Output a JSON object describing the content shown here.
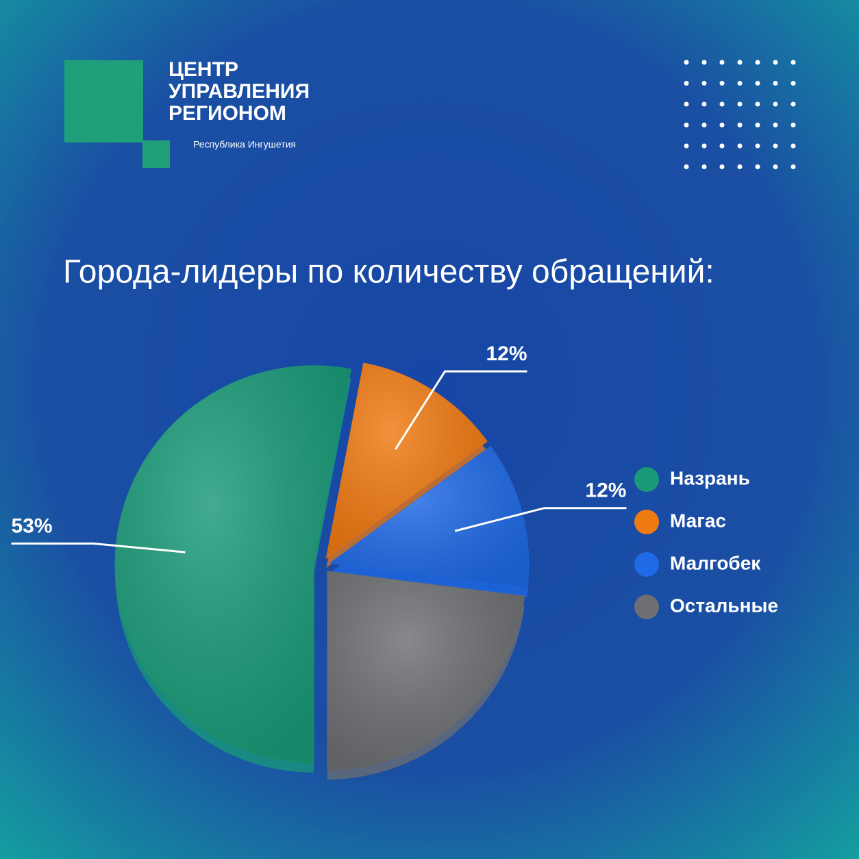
{
  "logo": {
    "lines": [
      "ЦЕНТР",
      "УПРАВЛЕНИЯ",
      "РЕГИОНОМ"
    ],
    "subtitle": "Республика Ингушетия"
  },
  "chart_data": {
    "type": "pie",
    "title": "Города-лидеры по количеству обращений:",
    "categories": [
      "Назрань",
      "Магас",
      "Малгобек",
      "Остальные"
    ],
    "values": [
      53,
      12,
      12,
      23
    ],
    "value_labels": [
      "53%",
      "12%",
      "12%",
      null
    ],
    "colors": [
      "#1a9a78",
      "#f07a12",
      "#1f6ae6",
      "#6e6f72"
    ],
    "legend": "right"
  }
}
